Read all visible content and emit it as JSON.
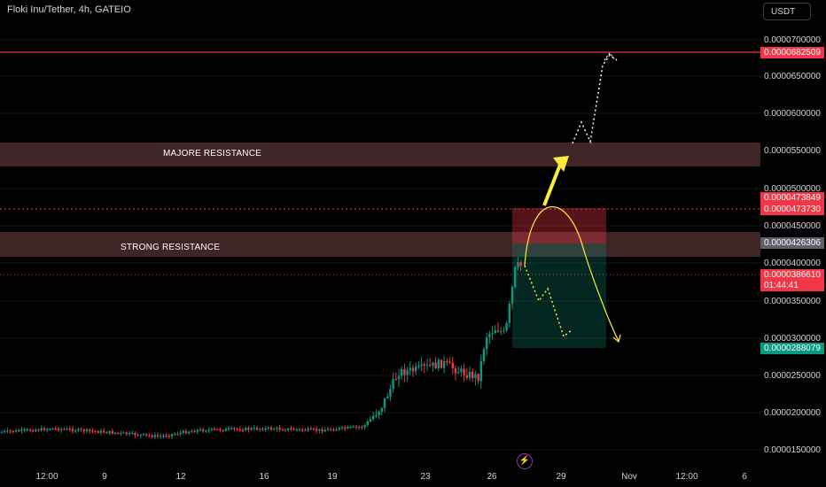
{
  "header": {
    "symbol_title": "Floki Inu/Tether, 4h, GATEIO",
    "currency": "USDT"
  },
  "zones": {
    "major_label": "MAJORE RESISTANCE",
    "strong_label": "STRONG RESISTANCE"
  },
  "yaxis": {
    "ticks": [
      "0.0000700000",
      "0.0000650000",
      "0.0000600000",
      "0.0000550000",
      "0.0000500000",
      "0.0000450000",
      "0.0000400000",
      "0.0000350000",
      "0.0000300000",
      "0.0000250000",
      "0.0000200000",
      "0.0000150000"
    ]
  },
  "price_tags": {
    "target": "0.0000682509",
    "level1": "0.0000473849",
    "level2": "0.0000473730",
    "strong": "0.0000426306",
    "last": "0.0000386610",
    "countdown": "01:44:41",
    "stop": "0.0000288079"
  },
  "xaxis": {
    "ticks": [
      "12:00",
      "9",
      "12",
      "16",
      "19",
      "23",
      "26",
      "29",
      "Nov",
      "12:00",
      "6"
    ]
  },
  "colors": {
    "red_line": "#f23645",
    "tag_red": "#f23645",
    "tag_gray": "#5d606b",
    "tag_green": "#089981",
    "arrow": "#ffeb3b"
  },
  "icons": {
    "event": "bolt-icon"
  }
}
